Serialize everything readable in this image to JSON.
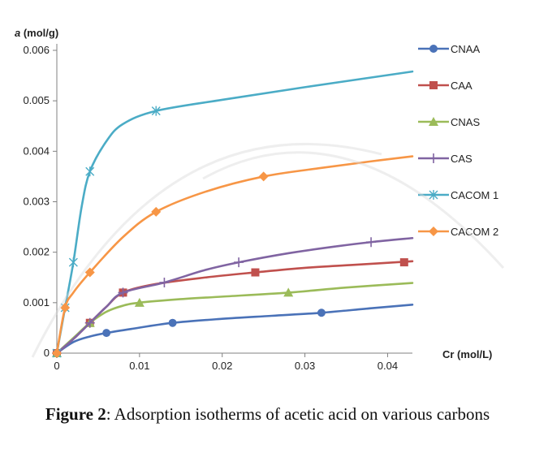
{
  "chart_data": {
    "type": "line",
    "title": "",
    "xlabel": "Cr (mol/L)",
    "ylabel_italic": "a",
    "ylabel_rest": " (mol/g)",
    "xlim": [
      0,
      0.043
    ],
    "ylim": [
      0,
      0.006
    ],
    "xticks": [
      0,
      0.01,
      0.02,
      0.03,
      0.04
    ],
    "xtick_labels": [
      "0",
      "0.01",
      "0.02",
      "0.03",
      "0.04"
    ],
    "yticks": [
      0,
      0.001,
      0.002,
      0.003,
      0.004,
      0.005,
      0.006
    ],
    "ytick_labels": [
      "0",
      "0.001",
      "0.002",
      "0.003",
      "0.004",
      "0.005",
      "0.006"
    ],
    "grid": false,
    "legend_position": "right",
    "series": [
      {
        "name": "CNAA",
        "color": "#4a72b8",
        "marker": "circle",
        "points": [
          [
            0,
            0
          ],
          [
            0.006,
            0.0004
          ],
          [
            0.014,
            0.0006
          ],
          [
            0.032,
            0.0008
          ]
        ],
        "curve": [
          [
            0,
            0
          ],
          [
            0.002,
            0.00022
          ],
          [
            0.004,
            0.00033
          ],
          [
            0.006,
            0.0004
          ],
          [
            0.009,
            0.00048
          ],
          [
            0.014,
            0.0006
          ],
          [
            0.02,
            0.00068
          ],
          [
            0.026,
            0.00074
          ],
          [
            0.032,
            0.0008
          ],
          [
            0.038,
            0.00089
          ],
          [
            0.043,
            0.00096
          ]
        ]
      },
      {
        "name": "CAA",
        "color": "#c0504d",
        "marker": "square",
        "points": [
          [
            0,
            0
          ],
          [
            0.004,
            0.0006
          ],
          [
            0.008,
            0.0012
          ],
          [
            0.024,
            0.0016
          ],
          [
            0.042,
            0.0018
          ]
        ],
        "curve": [
          [
            0,
            0
          ],
          [
            0.002,
            0.00028
          ],
          [
            0.004,
            0.0006
          ],
          [
            0.006,
            0.00092
          ],
          [
            0.008,
            0.0012
          ],
          [
            0.012,
            0.00137
          ],
          [
            0.018,
            0.0015
          ],
          [
            0.024,
            0.0016
          ],
          [
            0.03,
            0.00169
          ],
          [
            0.036,
            0.00175
          ],
          [
            0.043,
            0.00182
          ]
        ]
      },
      {
        "name": "CNAS",
        "color": "#9bbb59",
        "marker": "triangle",
        "points": [
          [
            0,
            0
          ],
          [
            0.004,
            0.0006
          ],
          [
            0.01,
            0.001
          ],
          [
            0.028,
            0.0012
          ]
        ],
        "curve": [
          [
            0,
            0
          ],
          [
            0.002,
            0.0003
          ],
          [
            0.004,
            0.0006
          ],
          [
            0.006,
            0.00082
          ],
          [
            0.008,
            0.00094
          ],
          [
            0.01,
            0.001
          ],
          [
            0.015,
            0.00107
          ],
          [
            0.02,
            0.00112
          ],
          [
            0.028,
            0.0012
          ],
          [
            0.035,
            0.0013
          ],
          [
            0.043,
            0.00139
          ]
        ]
      },
      {
        "name": "CAS",
        "color": "#8064a2",
        "marker": "plus",
        "points": [
          [
            0,
            0
          ],
          [
            0.004,
            0.0006
          ],
          [
            0.008,
            0.0012
          ],
          [
            0.013,
            0.0014
          ],
          [
            0.022,
            0.0018
          ],
          [
            0.038,
            0.0022
          ]
        ],
        "curve": [
          [
            0,
            0
          ],
          [
            0.002,
            0.00028
          ],
          [
            0.004,
            0.0006
          ],
          [
            0.006,
            0.00092
          ],
          [
            0.008,
            0.0012
          ],
          [
            0.013,
            0.0014
          ],
          [
            0.018,
            0.00165
          ],
          [
            0.022,
            0.0018
          ],
          [
            0.028,
            0.00198
          ],
          [
            0.034,
            0.00212
          ],
          [
            0.038,
            0.0022
          ],
          [
            0.043,
            0.00228
          ]
        ]
      },
      {
        "name": "CACOM 1",
        "color": "#4bacc6",
        "marker": "star",
        "points": [
          [
            0,
            0
          ],
          [
            0.001,
            0.0009
          ],
          [
            0.002,
            0.0018
          ],
          [
            0.004,
            0.0036
          ],
          [
            0.012,
            0.0048
          ]
        ],
        "curve": [
          [
            0,
            0
          ],
          [
            0.001,
            0.0009
          ],
          [
            0.002,
            0.0018
          ],
          [
            0.003,
            0.0029
          ],
          [
            0.004,
            0.0036
          ],
          [
            0.006,
            0.0042
          ],
          [
            0.008,
            0.00454
          ],
          [
            0.012,
            0.0048
          ],
          [
            0.02,
            0.00502
          ],
          [
            0.03,
            0.00527
          ],
          [
            0.043,
            0.00558
          ]
        ]
      },
      {
        "name": "CACOM 2",
        "color": "#f79646",
        "marker": "diamond",
        "points": [
          [
            0,
            0
          ],
          [
            0.001,
            0.0009
          ],
          [
            0.004,
            0.0016
          ],
          [
            0.012,
            0.0028
          ],
          [
            0.025,
            0.0035
          ]
        ],
        "curve": [
          [
            0,
            0
          ],
          [
            0.001,
            0.0009
          ],
          [
            0.002,
            0.0012
          ],
          [
            0.004,
            0.0016
          ],
          [
            0.008,
            0.0023
          ],
          [
            0.012,
            0.0028
          ],
          [
            0.018,
            0.0032
          ],
          [
            0.025,
            0.0035
          ],
          [
            0.032,
            0.00367
          ],
          [
            0.038,
            0.0038
          ],
          [
            0.043,
            0.0039
          ]
        ]
      }
    ]
  },
  "caption": {
    "label": "Figure 2",
    "text": ": Adsorption isotherms of acetic acid on various carbons"
  }
}
